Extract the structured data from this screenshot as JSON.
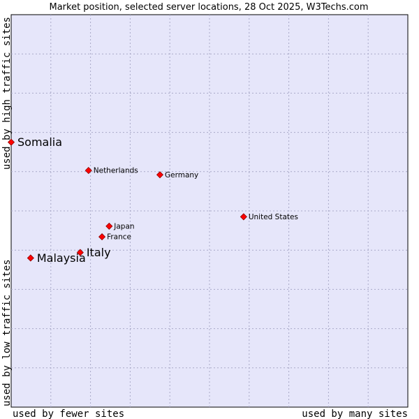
{
  "chart_data": {
    "type": "scatter",
    "title": "Market position, selected server locations, 28 Oct 2025, W3Techs.com",
    "xlabel_left": "used by fewer sites",
    "xlabel_right": "used by many sites",
    "ylabel_bottom": "used by low traffic sites",
    "ylabel_top": "used by high traffic sites",
    "xlim": [
      0,
      100
    ],
    "ylim": [
      0,
      100
    ],
    "grid": true,
    "colors": {
      "plot_background": "#e6e6fa",
      "grid": "#a9a9c8",
      "marker": "#ff0000",
      "marker_outline": "#8b0000"
    },
    "points": [
      {
        "name": "Somalia",
        "x": 0.0,
        "y": 67.5,
        "emphasis": true
      },
      {
        "name": "Netherlands",
        "x": 19.5,
        "y": 60.3,
        "emphasis": false
      },
      {
        "name": "Germany",
        "x": 37.5,
        "y": 59.2,
        "emphasis": false
      },
      {
        "name": "United States",
        "x": 58.6,
        "y": 48.5,
        "emphasis": false
      },
      {
        "name": "Japan",
        "x": 24.7,
        "y": 46.1,
        "emphasis": false
      },
      {
        "name": "France",
        "x": 22.9,
        "y": 43.4,
        "emphasis": false
      },
      {
        "name": "Italy",
        "x": 17.4,
        "y": 39.4,
        "emphasis": true
      },
      {
        "name": "Malaysia",
        "x": 4.9,
        "y": 38.0,
        "emphasis": true
      }
    ]
  }
}
